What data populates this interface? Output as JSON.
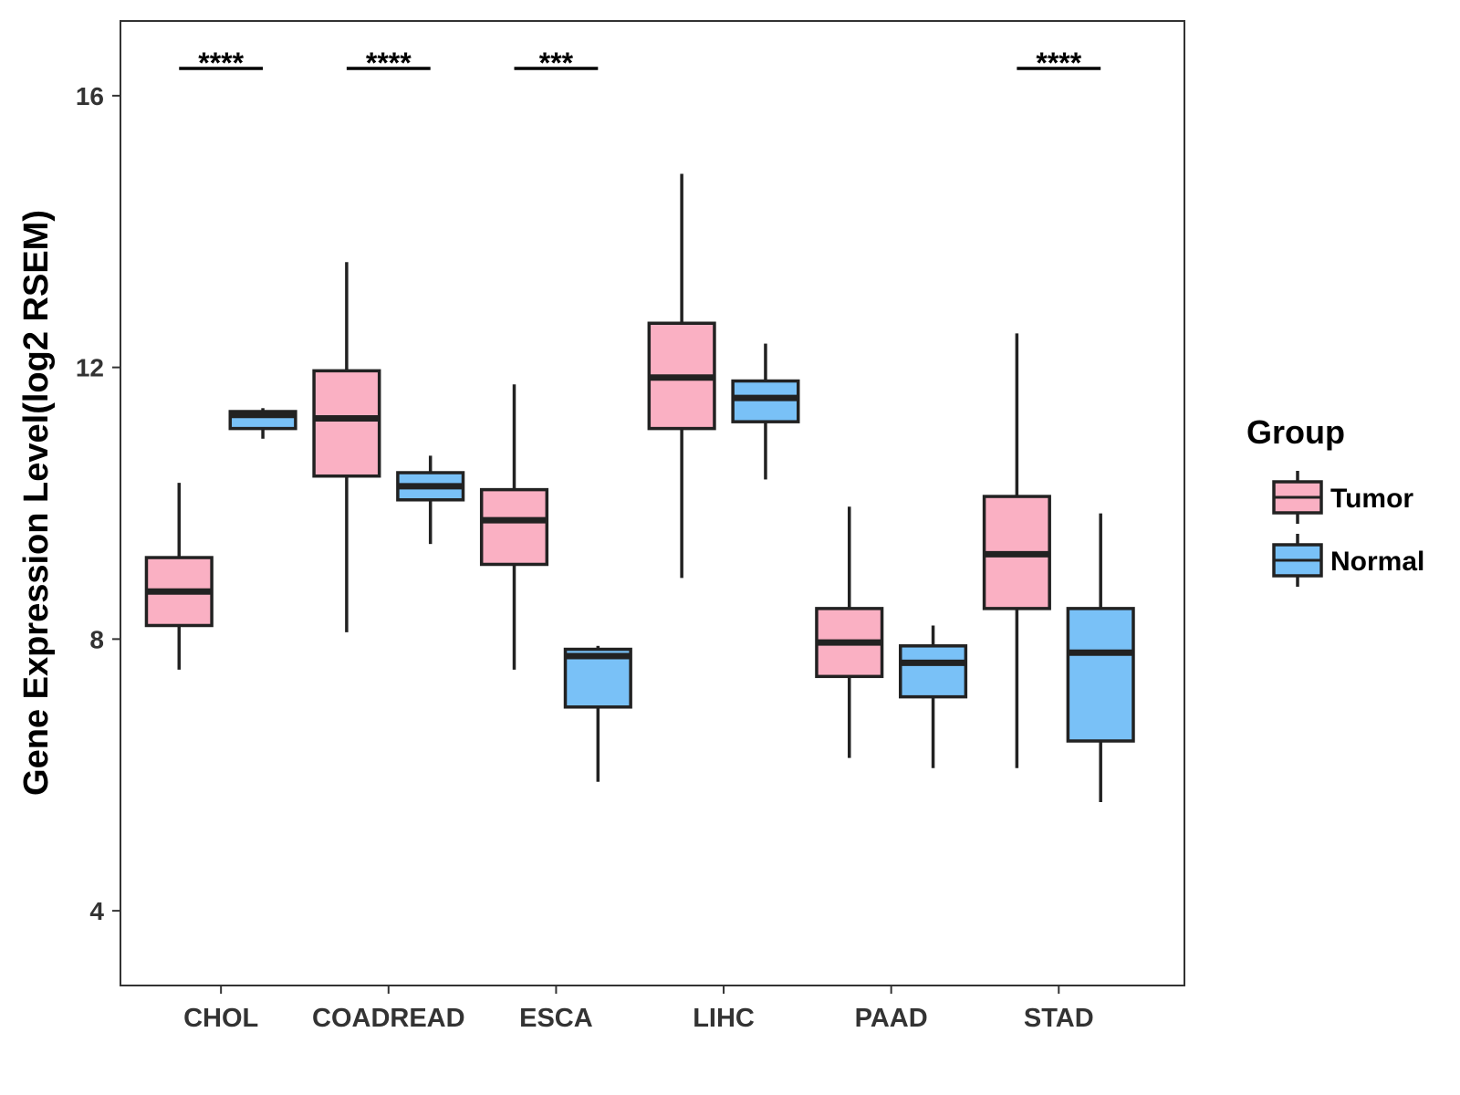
{
  "chart_data": {
    "type": "boxplot",
    "title": "",
    "xlabel": "",
    "ylabel": "Gene Expression Level(log2 RSEM)",
    "ylim": [
      2.9,
      17.1
    ],
    "yticks": [
      4,
      8,
      12,
      16
    ],
    "grid": false,
    "legend": {
      "title": "Group",
      "position": "right"
    },
    "categories": [
      "CHOL",
      "COADREAD",
      "ESCA",
      "LIHC",
      "PAAD",
      "STAD"
    ],
    "series": [
      {
        "name": "Tumor",
        "color": "#FAB0C3",
        "boxes": [
          {
            "min": 7.55,
            "q1": 8.2,
            "median": 8.7,
            "q3": 9.2,
            "max": 10.3
          },
          {
            "min": 8.1,
            "q1": 10.4,
            "median": 11.25,
            "q3": 11.95,
            "max": 13.55
          },
          {
            "min": 7.55,
            "q1": 9.1,
            "median": 9.75,
            "q3": 10.2,
            "max": 11.75
          },
          {
            "min": 8.9,
            "q1": 11.1,
            "median": 11.85,
            "q3": 12.65,
            "max": 14.85
          },
          {
            "min": 6.25,
            "q1": 7.45,
            "median": 7.95,
            "q3": 8.45,
            "max": 9.95
          },
          {
            "min": 6.1,
            "q1": 8.45,
            "median": 9.25,
            "q3": 10.1,
            "max": 12.5
          }
        ]
      },
      {
        "name": "Normal",
        "color": "#79C1F7",
        "boxes": [
          {
            "min": 10.95,
            "q1": 11.1,
            "median": 11.3,
            "q3": 11.35,
            "max": 11.4
          },
          {
            "min": 9.4,
            "q1": 10.05,
            "median": 10.25,
            "q3": 10.45,
            "max": 10.7
          },
          {
            "min": 5.9,
            "q1": 7.0,
            "median": 7.75,
            "q3": 7.85,
            "max": 7.9
          },
          {
            "min": 10.35,
            "q1": 11.2,
            "median": 11.55,
            "q3": 11.8,
            "max": 12.35
          },
          {
            "min": 6.1,
            "q1": 7.15,
            "median": 7.65,
            "q3": 7.9,
            "max": 8.2
          },
          {
            "min": 5.6,
            "q1": 6.5,
            "median": 7.8,
            "q3": 8.45,
            "max": 9.85
          }
        ]
      }
    ],
    "significance": [
      "****",
      "****",
      "***",
      "",
      "",
      "****"
    ]
  }
}
